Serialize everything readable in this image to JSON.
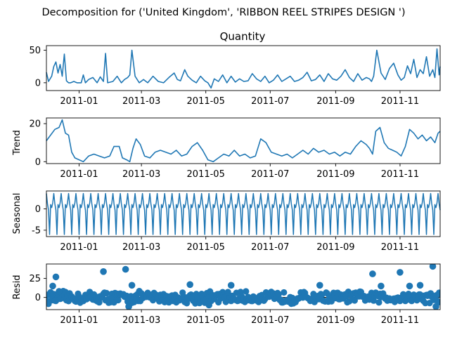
{
  "suptitle": "Decomposition for ('United Kingdom', 'RIBBON REEL STRIPES DESIGN ')",
  "colors": {
    "series": "#1f77b4",
    "axis": "#000000",
    "background": "#ffffff"
  },
  "chart_data": [
    {
      "type": "line",
      "title": "Quantity",
      "ylabel": "",
      "x_range": [
        "2010-12-01",
        "2011-12-09"
      ],
      "ylim": [
        -12,
        57
      ],
      "yticks": [
        0,
        50
      ],
      "xticks": [
        "2011-01",
        "2011-03",
        "2011-05",
        "2011-07",
        "2011-09",
        "2011-11"
      ],
      "series": [
        {
          "x": [
            "2010-12-01",
            "2010-12-03",
            "2010-12-06",
            "2010-12-08",
            "2010-12-10",
            "2010-12-12",
            "2010-12-14",
            "2010-12-16",
            "2010-12-18",
            "2010-12-20",
            "2010-12-22",
            "2010-12-24",
            "2010-12-27",
            "2010-12-30",
            "2011-01-03",
            "2011-01-05",
            "2011-01-07",
            "2011-01-10",
            "2011-01-14",
            "2011-01-18",
            "2011-01-21",
            "2011-01-24",
            "2011-01-26",
            "2011-01-28",
            "2011-02-02",
            "2011-02-06",
            "2011-02-10",
            "2011-02-13",
            "2011-02-16",
            "2011-02-18",
            "2011-02-20",
            "2011-02-23",
            "2011-02-27",
            "2011-03-03",
            "2011-03-07",
            "2011-03-12",
            "2011-03-17",
            "2011-03-22",
            "2011-03-27",
            "2011-04-01",
            "2011-04-04",
            "2011-04-07",
            "2011-04-11",
            "2011-04-14",
            "2011-04-18",
            "2011-04-22",
            "2011-04-26",
            "2011-04-30",
            "2011-05-03",
            "2011-05-06",
            "2011-05-09",
            "2011-05-13",
            "2011-05-17",
            "2011-05-21",
            "2011-05-25",
            "2011-05-29",
            "2011-06-02",
            "2011-06-06",
            "2011-06-10",
            "2011-06-14",
            "2011-06-18",
            "2011-06-22",
            "2011-06-26",
            "2011-06-30",
            "2011-07-04",
            "2011-07-08",
            "2011-07-12",
            "2011-07-16",
            "2011-07-20",
            "2011-07-24",
            "2011-07-28",
            "2011-08-01",
            "2011-08-05",
            "2011-08-09",
            "2011-08-13",
            "2011-08-17",
            "2011-08-21",
            "2011-08-25",
            "2011-08-29",
            "2011-09-02",
            "2011-09-06",
            "2011-09-10",
            "2011-09-14",
            "2011-09-18",
            "2011-09-22",
            "2011-09-26",
            "2011-09-30",
            "2011-10-03",
            "2011-10-05",
            "2011-10-07",
            "2011-10-10",
            "2011-10-14",
            "2011-10-18",
            "2011-10-22",
            "2011-10-26",
            "2011-10-30",
            "2011-11-02",
            "2011-11-05",
            "2011-11-08",
            "2011-11-11",
            "2011-11-14",
            "2011-11-17",
            "2011-11-20",
            "2011-11-23",
            "2011-11-26",
            "2011-11-29",
            "2011-12-02",
            "2011-12-04",
            "2011-12-06",
            "2011-12-08",
            "2011-12-09"
          ],
          "y": [
            16,
            2,
            10,
            25,
            32,
            15,
            28,
            10,
            44,
            3,
            0,
            0,
            2,
            0,
            0,
            12,
            0,
            5,
            8,
            0,
            9,
            2,
            45,
            0,
            2,
            10,
            0,
            5,
            8,
            12,
            50,
            10,
            0,
            5,
            0,
            10,
            2,
            0,
            8,
            15,
            5,
            3,
            20,
            10,
            4,
            0,
            10,
            3,
            0,
            -8,
            6,
            2,
            12,
            0,
            10,
            1,
            6,
            2,
            3,
            14,
            6,
            2,
            10,
            0,
            4,
            12,
            2,
            6,
            10,
            2,
            4,
            8,
            16,
            3,
            5,
            12,
            2,
            14,
            6,
            4,
            10,
            20,
            8,
            2,
            14,
            4,
            8,
            6,
            2,
            10,
            50,
            15,
            5,
            22,
            30,
            12,
            4,
            8,
            26,
            14,
            36,
            8,
            20,
            14,
            40,
            10,
            20,
            8,
            52,
            12,
            25
          ]
        }
      ]
    },
    {
      "type": "line",
      "title": "",
      "ylabel": "Trend",
      "x_range": [
        "2010-12-01",
        "2011-12-09"
      ],
      "ylim": [
        -1,
        23
      ],
      "yticks": [
        0,
        20
      ],
      "xticks": [
        "2011-01",
        "2011-03",
        "2011-05",
        "2011-07",
        "2011-09",
        "2011-11"
      ],
      "series": [
        {
          "x": [
            "2010-12-01",
            "2010-12-05",
            "2010-12-09",
            "2010-12-13",
            "2010-12-16",
            "2010-12-19",
            "2010-12-22",
            "2010-12-25",
            "2010-12-28",
            "2011-01-01",
            "2011-01-05",
            "2011-01-10",
            "2011-01-15",
            "2011-01-20",
            "2011-01-25",
            "2011-01-30",
            "2011-02-03",
            "2011-02-08",
            "2011-02-11",
            "2011-02-15",
            "2011-02-18",
            "2011-02-21",
            "2011-02-24",
            "2011-02-28",
            "2011-03-04",
            "2011-03-09",
            "2011-03-14",
            "2011-03-19",
            "2011-03-24",
            "2011-03-29",
            "2011-04-03",
            "2011-04-08",
            "2011-04-13",
            "2011-04-18",
            "2011-04-23",
            "2011-04-28",
            "2011-05-03",
            "2011-05-08",
            "2011-05-13",
            "2011-05-18",
            "2011-05-23",
            "2011-05-28",
            "2011-06-02",
            "2011-06-07",
            "2011-06-12",
            "2011-06-17",
            "2011-06-22",
            "2011-06-27",
            "2011-07-02",
            "2011-07-07",
            "2011-07-12",
            "2011-07-17",
            "2011-07-22",
            "2011-07-27",
            "2011-08-01",
            "2011-08-06",
            "2011-08-11",
            "2011-08-16",
            "2011-08-21",
            "2011-08-26",
            "2011-08-31",
            "2011-09-05",
            "2011-09-10",
            "2011-09-15",
            "2011-09-20",
            "2011-09-25",
            "2011-09-30",
            "2011-10-03",
            "2011-10-06",
            "2011-10-09",
            "2011-10-13",
            "2011-10-17",
            "2011-10-21",
            "2011-10-25",
            "2011-10-29",
            "2011-11-02",
            "2011-11-06",
            "2011-11-10",
            "2011-11-14",
            "2011-11-18",
            "2011-11-22",
            "2011-11-26",
            "2011-11-30",
            "2011-12-04",
            "2011-12-07",
            "2011-12-09"
          ],
          "y": [
            11,
            14,
            17,
            18,
            22,
            15,
            14,
            5,
            2,
            1,
            0,
            3,
            4,
            3,
            2,
            3,
            8,
            8,
            2,
            1,
            0,
            7,
            12,
            9,
            3,
            2,
            5,
            6,
            5,
            4,
            6,
            3,
            4,
            8,
            10,
            6,
            1,
            0,
            2,
            4,
            3,
            6,
            3,
            4,
            2,
            3,
            12,
            10,
            5,
            4,
            3,
            4,
            2,
            4,
            6,
            4,
            7,
            5,
            6,
            4,
            5,
            3,
            5,
            4,
            8,
            11,
            9,
            7,
            4,
            16,
            18,
            10,
            7,
            6,
            5,
            3,
            8,
            17,
            15,
            12,
            14,
            11,
            13,
            10,
            15,
            16
          ]
        }
      ]
    },
    {
      "type": "line",
      "title": "",
      "ylabel": "Seasonal",
      "x_range": [
        "2010-12-01",
        "2011-12-09"
      ],
      "ylim": [
        -6.5,
        4.2
      ],
      "yticks": [
        -5,
        0
      ],
      "xticks": [
        "2011-01",
        "2011-03",
        "2011-05",
        "2011-07",
        "2011-09",
        "2011-11"
      ],
      "weekly_pattern": [
        3.6,
        1.2,
        -0.3,
        -6.0,
        1.0,
        0.3,
        1.4
      ]
    },
    {
      "type": "scatter",
      "title": "",
      "ylabel": "Resid",
      "x_range": [
        "2010-12-01",
        "2011-12-09"
      ],
      "ylim": [
        -16,
        44
      ],
      "yticks": [
        0,
        25
      ],
      "xticks": [
        "2011-01",
        "2011-03",
        "2011-05",
        "2011-07",
        "2011-09",
        "2011-11"
      ],
      "zero_line": true,
      "outliers": [
        {
          "x": "2010-12-07",
          "y": 15
        },
        {
          "x": "2010-12-10",
          "y": 27
        },
        {
          "x": "2010-12-13",
          "y": 8
        },
        {
          "x": "2011-01-24",
          "y": 34
        },
        {
          "x": "2011-02-14",
          "y": 37
        },
        {
          "x": "2011-02-20",
          "y": 16
        },
        {
          "x": "2011-02-17",
          "y": -12
        },
        {
          "x": "2011-04-16",
          "y": 17
        },
        {
          "x": "2011-05-04",
          "y": -10
        },
        {
          "x": "2011-05-25",
          "y": 16
        },
        {
          "x": "2011-08-17",
          "y": 16
        },
        {
          "x": "2011-10-06",
          "y": 31
        },
        {
          "x": "2011-10-14",
          "y": 15
        },
        {
          "x": "2011-11-01",
          "y": 33
        },
        {
          "x": "2011-11-10",
          "y": 15
        },
        {
          "x": "2011-11-20",
          "y": 16
        },
        {
          "x": "2011-12-02",
          "y": 41
        },
        {
          "x": "2011-12-05",
          "y": -12
        }
      ],
      "noise_amplitude": 8
    }
  ]
}
